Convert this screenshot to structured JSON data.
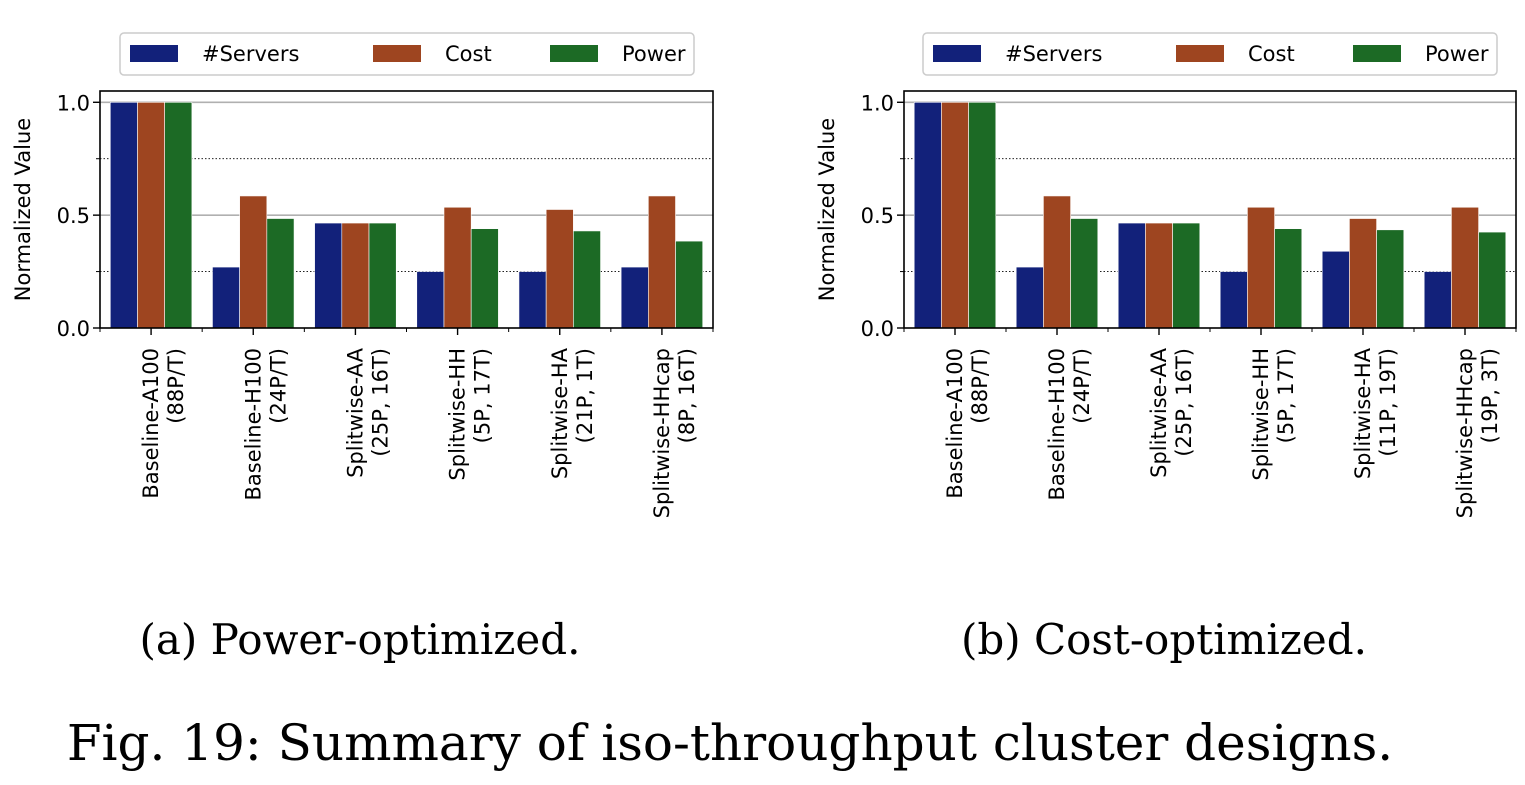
{
  "figure_caption": "Fig. 19: Summary of iso-throughput cluster designs.",
  "colors": {
    "#Servers": "#12217a",
    "Cost": "#9e4520",
    "Power": "#1c6a25"
  },
  "chart_data": [
    {
      "type": "bar",
      "caption": "(a) Power-optimized.",
      "ylabel": "Normalized Value",
      "xlabel": "",
      "ylim": [
        0,
        1.05
      ],
      "yticks": [
        "0.0",
        "0.5",
        "1.0"
      ],
      "grid": "major solid at 0.5 and 1.0, dotted at 0.25 and 0.75",
      "legend_position": "top",
      "categories": [
        [
          "Baseline-A100",
          "(88P/T)"
        ],
        [
          "Baseline-H100",
          "(24P/T)"
        ],
        [
          "Splitwise-AA",
          "(25P, 16T)"
        ],
        [
          "Splitwise-HH",
          "(5P, 17T)"
        ],
        [
          "Splitwise-HA",
          "(21P, 1T)"
        ],
        [
          "Splitwise-HHcap",
          "(8P, 16T)"
        ]
      ],
      "series": [
        {
          "name": "#Servers",
          "values": [
            1.0,
            0.27,
            0.465,
            0.25,
            0.25,
            0.27
          ]
        },
        {
          "name": "Cost",
          "values": [
            1.0,
            0.585,
            0.465,
            0.535,
            0.525,
            0.585
          ]
        },
        {
          "name": "Power",
          "values": [
            1.0,
            0.485,
            0.465,
            0.44,
            0.43,
            0.385
          ]
        }
      ]
    },
    {
      "type": "bar",
      "caption": "(b) Cost-optimized.",
      "ylabel": "Normalized Value",
      "xlabel": "",
      "ylim": [
        0,
        1.05
      ],
      "yticks": [
        "0.0",
        "0.5",
        "1.0"
      ],
      "grid": "major solid at 0.5 and 1.0, dotted at 0.25 and 0.75",
      "legend_position": "top",
      "categories": [
        [
          "Baseline-A100",
          "(88P/T)"
        ],
        [
          "Baseline-H100",
          "(24P/T)"
        ],
        [
          "Splitwise-AA",
          "(25P, 16T)"
        ],
        [
          "Splitwise-HH",
          "(5P, 17T)"
        ],
        [
          "Splitwise-HA",
          "(11P, 19T)"
        ],
        [
          "Splitwise-HHcap",
          "(19P, 3T)"
        ]
      ],
      "series": [
        {
          "name": "#Servers",
          "values": [
            1.0,
            0.27,
            0.465,
            0.25,
            0.34,
            0.25
          ]
        },
        {
          "name": "Cost",
          "values": [
            1.0,
            0.585,
            0.465,
            0.535,
            0.485,
            0.535
          ]
        },
        {
          "name": "Power",
          "values": [
            1.0,
            0.485,
            0.465,
            0.44,
            0.435,
            0.425
          ]
        }
      ]
    }
  ]
}
